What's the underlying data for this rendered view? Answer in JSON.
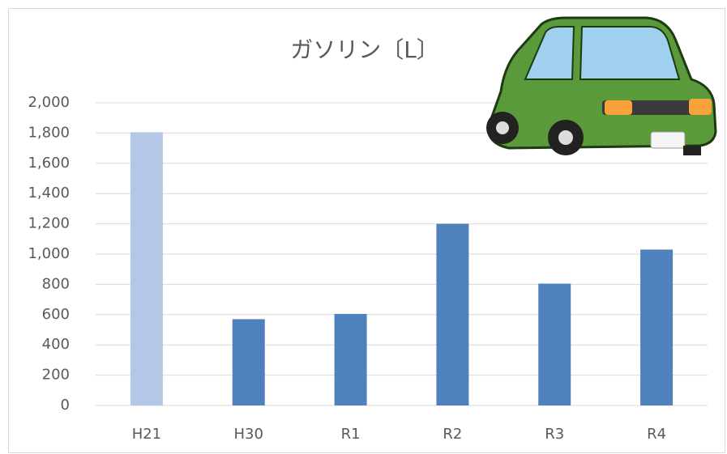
{
  "chart_data": {
    "type": "bar",
    "title": "ガソリン〔L〕",
    "categories": [
      "H21",
      "H30",
      "R1",
      "R2",
      "R3",
      "R4"
    ],
    "values": [
      1805,
      570,
      605,
      1200,
      805,
      1030
    ],
    "colors": [
      "#b4c7e7",
      "#4f81bd",
      "#4f81bd",
      "#4f81bd",
      "#4f81bd",
      "#4f81bd"
    ],
    "ylim": [
      0,
      2000
    ],
    "yticks": [
      0,
      200,
      400,
      600,
      800,
      {
        "value": 1000,
        "label": "1,000"
      },
      {
        "value": 1200,
        "label": "1,200"
      },
      {
        "value": 1400,
        "label": "1,400"
      },
      {
        "value": 1600,
        "label": "1,600"
      },
      {
        "value": 1800,
        "label": "1,800"
      },
      {
        "value": 2000,
        "label": "2,000"
      }
    ],
    "grid": true
  }
}
